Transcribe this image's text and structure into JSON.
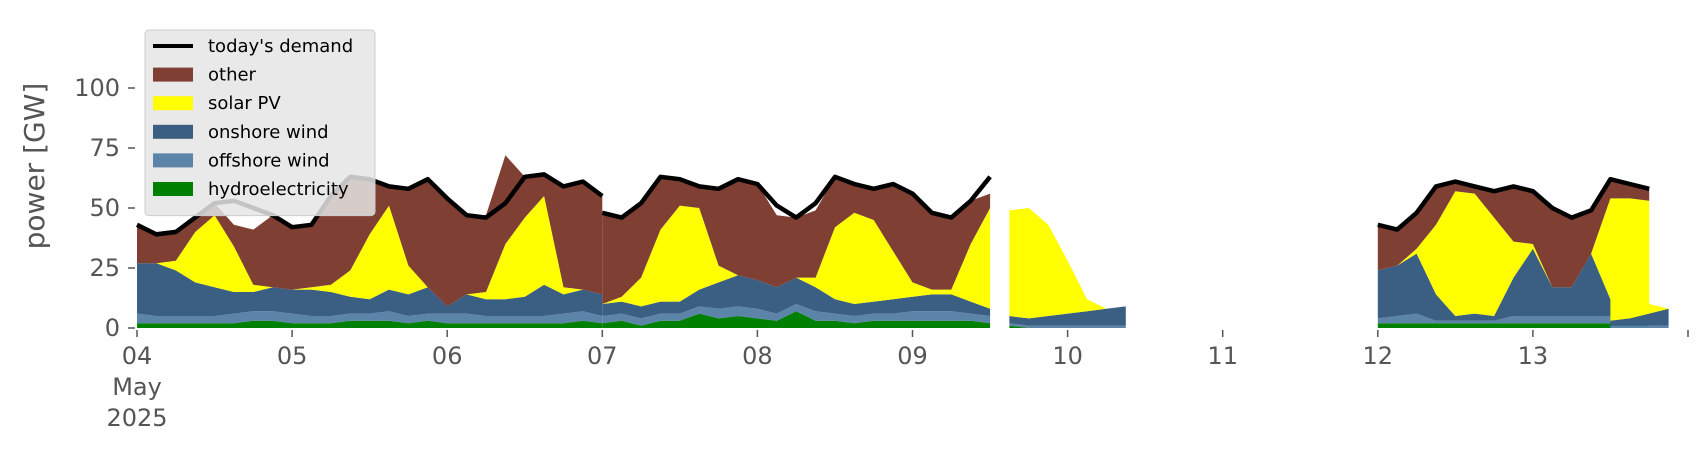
{
  "chart_data": {
    "type": "area",
    "ylabel": "power [GW]",
    "ylim": [
      0,
      120
    ],
    "yticks": [
      0,
      25,
      50,
      75,
      100
    ],
    "xlim": [
      "2025-05-04T00:00",
      "2025-05-14T00:00"
    ],
    "xticks": [
      {
        "date": "2025-05-04",
        "label": "04",
        "sub": [
          "May",
          "2025"
        ]
      },
      {
        "date": "2025-05-05",
        "label": "05"
      },
      {
        "date": "2025-05-06",
        "label": "06"
      },
      {
        "date": "2025-05-07",
        "label": "07"
      },
      {
        "date": "2025-05-08",
        "label": "08"
      },
      {
        "date": "2025-05-09",
        "label": "09"
      },
      {
        "date": "2025-05-10",
        "label": "10"
      },
      {
        "date": "2025-05-11",
        "label": "11"
      },
      {
        "date": "2025-05-12",
        "label": "12"
      },
      {
        "date": "2025-05-13",
        "label": "13"
      }
    ],
    "grid": false,
    "legend_position": "upper-left",
    "colors": {
      "demand": "#000000",
      "other": "#7f3f33",
      "solar": "#ffff00",
      "onshore": "#3a5f82",
      "offshore": "#5c83a8",
      "hydro": "#008000",
      "legend_bg": "#e5e5e5"
    },
    "legend": [
      {
        "key": "demand",
        "label": "today's demand"
      },
      {
        "key": "other",
        "label": "other"
      },
      {
        "key": "solar",
        "label": "solar PV"
      },
      {
        "key": "onshore",
        "label": "onshore wind"
      },
      {
        "key": "offshore",
        "label": "offshore wind"
      },
      {
        "key": "hydro",
        "label": "hydroelectricity"
      }
    ],
    "stack_order": [
      "hydro",
      "offshore",
      "onshore",
      "solar",
      "other"
    ],
    "segments": [
      {
        "start": "2025-05-04T00:00",
        "step_hours": 3,
        "demand": [
          43,
          39,
          40,
          46,
          52,
          53,
          50,
          47,
          42,
          43,
          55,
          63,
          62,
          59,
          58,
          62,
          54,
          47,
          46,
          52,
          63,
          64,
          59,
          61,
          55
        ],
        "other": [
          16,
          13,
          13,
          7,
          5,
          9,
          23,
          30,
          26,
          26,
          37,
          39,
          23,
          8,
          32,
          45,
          45,
          33,
          32,
          37,
          17,
          9,
          42,
          45,
          41
        ],
        "solar": [
          0,
          0,
          4,
          21,
          30,
          19,
          3,
          0,
          0,
          1,
          3,
          11,
          27,
          35,
          12,
          0,
          0,
          0,
          3,
          23,
          33,
          37,
          3,
          0,
          0
        ],
        "onshore": [
          21,
          22,
          19,
          14,
          12,
          9,
          8,
          10,
          10,
          11,
          10,
          7,
          6,
          9,
          9,
          11,
          3,
          8,
          7,
          7,
          8,
          13,
          8,
          9,
          9
        ],
        "offshore": [
          4,
          3,
          3,
          3,
          3,
          4,
          4,
          4,
          4,
          3,
          3,
          3,
          3,
          4,
          3,
          3,
          4,
          4,
          3,
          3,
          3,
          3,
          4,
          4,
          3
        ],
        "hydro": [
          2,
          2,
          2,
          2,
          2,
          2,
          3,
          3,
          2,
          2,
          2,
          3,
          3,
          3,
          2,
          3,
          2,
          2,
          2,
          2,
          2,
          2,
          2,
          3,
          2
        ]
      },
      {
        "start": "2025-05-07T00:00",
        "step_hours": 3,
        "demand": [
          48,
          46,
          52,
          63,
          62,
          59,
          58,
          62,
          60,
          51,
          46,
          52,
          63,
          60,
          58,
          60,
          56,
          48,
          46,
          53,
          63
        ],
        "other": [
          38,
          33,
          31,
          22,
          11,
          9,
          32,
          40,
          40,
          30,
          25,
          28,
          21,
          12,
          13,
          28,
          37,
          32,
          30,
          18,
          6
        ],
        "solar": [
          0,
          2,
          12,
          30,
          40,
          34,
          7,
          0,
          0,
          0,
          0,
          4,
          30,
          38,
          34,
          20,
          6,
          2,
          2,
          24,
          42
        ],
        "onshore": [
          5,
          5,
          5,
          5,
          5,
          7,
          11,
          13,
          12,
          11,
          11,
          10,
          6,
          5,
          5,
          6,
          6,
          7,
          7,
          5,
          3
        ],
        "offshore": [
          3,
          3,
          3,
          3,
          3,
          3,
          4,
          4,
          4,
          3,
          3,
          4,
          3,
          3,
          3,
          3,
          4,
          4,
          4,
          3,
          3
        ],
        "hydro": [
          2,
          3,
          1,
          3,
          3,
          6,
          4,
          5,
          4,
          3,
          7,
          3,
          3,
          2,
          3,
          3,
          3,
          3,
          3,
          3,
          2
        ]
      },
      {
        "start": "2025-05-09T15:00",
        "step_hours": 3,
        "demand": null,
        "other": [
          0,
          0,
          0,
          0,
          0,
          0,
          0
        ],
        "solar": [
          44,
          46,
          38,
          22,
          5,
          0,
          0
        ],
        "onshore": [
          3,
          3,
          4,
          5,
          6,
          7,
          8
        ],
        "offshore": [
          1,
          1,
          1,
          1,
          1,
          1,
          1
        ],
        "hydro": [
          1,
          0,
          0,
          0,
          0,
          0,
          0
        ]
      },
      {
        "start": "2025-05-12T00:00",
        "step_hours": 3,
        "demand": [
          43,
          41,
          48,
          59,
          61,
          59,
          57,
          59,
          57,
          50,
          46,
          49,
          62,
          60,
          58
        ],
        "other": [
          19,
          15,
          15,
          16,
          4,
          3,
          11,
          23,
          22,
          33,
          29,
          18,
          8,
          6,
          5
        ],
        "solar": [
          0,
          0,
          2,
          29,
          52,
          50,
          41,
          15,
          2,
          0,
          0,
          0,
          42,
          50,
          47
        ],
        "onshore": [
          20,
          21,
          25,
          11,
          2,
          3,
          2,
          16,
          28,
          12,
          12,
          26,
          7,
          0,
          3
        ],
        "offshore": [
          2,
          3,
          4,
          1,
          1,
          1,
          1,
          3,
          3,
          3,
          3,
          3,
          3,
          2,
          1
        ],
        "hydro": [
          2,
          2,
          2,
          2,
          2,
          2,
          2,
          2,
          2,
          2,
          2,
          2,
          2,
          2,
          2
        ]
      },
      {
        "start": "2025-05-13T12:00",
        "step_hours": 3,
        "demand": null,
        "other": [
          0,
          0,
          0,
          0
        ],
        "solar": [
          49,
          30,
          4,
          0
        ],
        "onshore": [
          2,
          3,
          5,
          7
        ],
        "offshore": [
          1,
          1,
          1,
          1
        ],
        "hydro": [
          0,
          0,
          0,
          0
        ]
      }
    ]
  }
}
